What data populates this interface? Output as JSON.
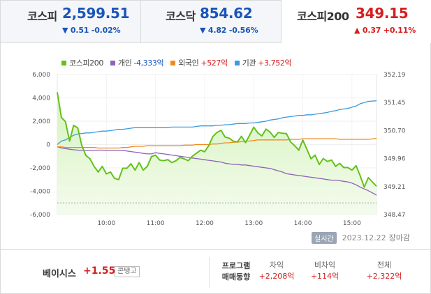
{
  "indices": [
    {
      "name": "코스피",
      "value": "2,599.51",
      "change": "▼ 0.51 -0.02%",
      "direction": "down"
    },
    {
      "name": "코스닥",
      "value": "854.62",
      "change": "▼ 4.82 -0.56%",
      "direction": "down"
    },
    {
      "name": "코스피200",
      "value": "349.15",
      "change": "▲ 0.37 +0.11%",
      "direction": "up"
    }
  ],
  "legend": [
    {
      "label": "코스피200",
      "value": "",
      "color": "#63c11a"
    },
    {
      "label": "개인",
      "value": "-4,333억",
      "color": "#8e62b8",
      "value_color": "#1a56b8"
    },
    {
      "label": "외국인",
      "value": "+527억",
      "color": "#f08a1c",
      "value_color": "#d71e1e"
    },
    {
      "label": "기관",
      "value": "+3,752억",
      "color": "#3a9be0",
      "value_color": "#d71e1e"
    }
  ],
  "status": {
    "badge": "실시간",
    "date": "2023.12.22",
    "session": "장마감"
  },
  "bottom": {
    "basis_label": "베이시스",
    "basis_value": "+1.55",
    "contango": "콘탱고",
    "program_label_1": "프로그램",
    "program_label_2": "매매동향",
    "columns": [
      {
        "head": "차익",
        "value": "+2,208억"
      },
      {
        "head": "비차익",
        "value": "+114억"
      },
      {
        "head": "전체",
        "value": "+2,322억"
      }
    ]
  },
  "chart_data": {
    "type": "line",
    "x_ticks": [
      "10:00",
      "11:00",
      "12:00",
      "13:00",
      "14:00",
      "15:00"
    ],
    "left_axis": {
      "ticks": [
        "6,000",
        "4,000",
        "2,000",
        "0",
        "-2,000",
        "-4,000",
        "-6,000"
      ],
      "ylim": [
        -6000,
        6000
      ]
    },
    "right_axis": {
      "ticks": [
        "352.19",
        "351.45",
        "350.70",
        "349.96",
        "349.21",
        "348.47"
      ],
      "ylim": [
        348.47,
        352.19
      ]
    },
    "reference_line_right": 348.78,
    "x": [
      "09:00",
      "09:05",
      "09:10",
      "09:15",
      "09:20",
      "09:25",
      "09:30",
      "09:35",
      "09:40",
      "09:45",
      "09:50",
      "09:55",
      "10:00",
      "10:05",
      "10:10",
      "10:15",
      "10:20",
      "10:25",
      "10:30",
      "10:35",
      "10:40",
      "10:45",
      "10:50",
      "10:55",
      "11:00",
      "11:05",
      "11:10",
      "11:15",
      "11:20",
      "11:25",
      "11:30",
      "11:35",
      "11:40",
      "11:45",
      "11:50",
      "11:55",
      "12:00",
      "12:05",
      "12:10",
      "12:15",
      "12:20",
      "12:25",
      "12:30",
      "12:35",
      "12:40",
      "12:45",
      "12:50",
      "12:55",
      "13:00",
      "13:05",
      "13:10",
      "13:15",
      "13:20",
      "13:25",
      "13:30",
      "13:35",
      "13:40",
      "13:45",
      "13:50",
      "13:55",
      "14:00",
      "14:05",
      "14:10",
      "14:15",
      "14:20",
      "14:25",
      "14:30",
      "14:35",
      "14:40",
      "14:45",
      "14:50",
      "14:55",
      "15:00",
      "15:05",
      "15:10",
      "15:15",
      "15:20",
      "15:30"
    ],
    "series": [
      {
        "name": "코스피200",
        "axis": "right",
        "color": "#63c11a",
        "values": [
          351.72,
          351.05,
          350.94,
          350.42,
          350.84,
          350.77,
          350.3,
          350.04,
          349.95,
          349.75,
          349.6,
          349.75,
          349.55,
          349.6,
          349.43,
          349.4,
          349.7,
          349.7,
          349.82,
          349.65,
          349.85,
          349.65,
          349.75,
          350.01,
          350.05,
          349.92,
          349.9,
          349.93,
          349.85,
          349.9,
          349.99,
          349.95,
          349.9,
          350.02,
          350.1,
          350.18,
          350.14,
          350.3,
          350.54,
          350.65,
          350.71,
          350.53,
          350.5,
          350.42,
          350.4,
          350.55,
          350.38,
          350.58,
          350.79,
          350.64,
          350.56,
          350.74,
          350.66,
          350.52,
          350.65,
          350.63,
          350.62,
          350.4,
          350.3,
          350.18,
          350.45,
          350.2,
          349.95,
          350.05,
          349.8,
          349.96,
          349.88,
          349.92,
          349.75,
          349.83,
          349.72,
          349.72,
          349.65,
          349.77,
          349.5,
          349.2,
          349.45,
          349.22
        ]
      },
      {
        "name": "개인",
        "axis": "left",
        "color": "#8e62b8",
        "values": [
          -200,
          -300,
          -350,
          -400,
          -450,
          -480,
          -500,
          -500,
          -500,
          -500,
          -480,
          -480,
          -500,
          -500,
          -500,
          -500,
          -500,
          -550,
          -600,
          -650,
          -700,
          -750,
          -800,
          -800,
          -700,
          -750,
          -800,
          -850,
          -900,
          -950,
          -1000,
          -1050,
          -1100,
          -1150,
          -1200,
          -1250,
          -1300,
          -1350,
          -1400,
          -1450,
          -1500,
          -1600,
          -1650,
          -1700,
          -1700,
          -1750,
          -1750,
          -1800,
          -1850,
          -1900,
          -1950,
          -2000,
          -2050,
          -2150,
          -2250,
          -2350,
          -2500,
          -2550,
          -2600,
          -2650,
          -2700,
          -2750,
          -2800,
          -2850,
          -2900,
          -2950,
          -3000,
          -3050,
          -3050,
          -3100,
          -3150,
          -3200,
          -3300,
          -3450,
          -3650,
          -3800,
          -3950,
          -4333
        ]
      },
      {
        "name": "외국인",
        "axis": "left",
        "color": "#f08a1c",
        "values": [
          -200,
          -200,
          -250,
          -250,
          -250,
          -250,
          -250,
          -250,
          -250,
          -250,
          -300,
          -300,
          -300,
          -300,
          -300,
          -300,
          -250,
          -250,
          -200,
          -150,
          -150,
          -150,
          -100,
          -100,
          -100,
          -100,
          -100,
          -100,
          -100,
          -100,
          -100,
          -50,
          -50,
          -50,
          0,
          0,
          0,
          0,
          50,
          50,
          100,
          150,
          150,
          200,
          200,
          250,
          300,
          300,
          350,
          400,
          400,
          400,
          400,
          400,
          400,
          400,
          400,
          450,
          450,
          450,
          500,
          500,
          500,
          500,
          500,
          500,
          500,
          500,
          500,
          450,
          450,
          450,
          450,
          450,
          450,
          450,
          450,
          527
        ]
      },
      {
        "name": "기관",
        "axis": "left",
        "color": "#3a9be0",
        "values": [
          0,
          300,
          400,
          600,
          800,
          900,
          950,
          1000,
          1000,
          1050,
          1100,
          1150,
          1150,
          1200,
          1250,
          1300,
          1300,
          1350,
          1400,
          1450,
          1450,
          1450,
          1450,
          1450,
          1450,
          1450,
          1450,
          1450,
          1500,
          1500,
          1500,
          1500,
          1500,
          1500,
          1550,
          1600,
          1600,
          1600,
          1600,
          1650,
          1650,
          1700,
          1700,
          1750,
          1800,
          1800,
          1800,
          1850,
          1850,
          1900,
          1950,
          2000,
          2100,
          2150,
          2200,
          2300,
          2350,
          2400,
          2450,
          2500,
          2500,
          2550,
          2550,
          2600,
          2650,
          2700,
          2750,
          2850,
          2900,
          3000,
          3050,
          3100,
          3200,
          3300,
          3500,
          3600,
          3700,
          3752
        ]
      }
    ]
  }
}
